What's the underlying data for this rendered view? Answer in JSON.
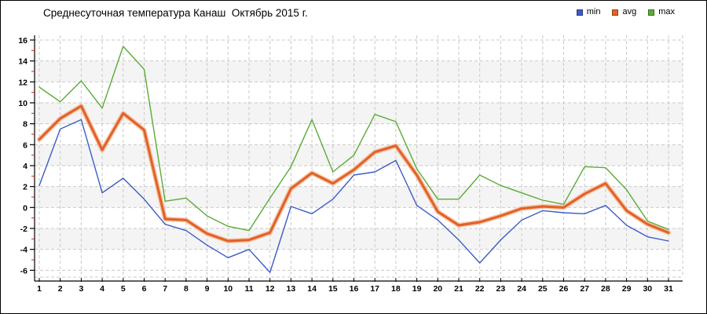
{
  "title": "Среднесуточная температура Канаш  Октябрь 2015 г.",
  "legend": {
    "items": [
      "min",
      "avg",
      "max"
    ]
  },
  "chart_data": {
    "type": "line",
    "title": "Среднесуточная температура Канаш  Октябрь 2015 г.",
    "x": [
      1,
      2,
      3,
      4,
      5,
      6,
      7,
      8,
      9,
      10,
      11,
      12,
      13,
      14,
      15,
      16,
      17,
      18,
      19,
      20,
      21,
      22,
      23,
      24,
      25,
      26,
      27,
      28,
      29,
      30,
      31
    ],
    "series": [
      {
        "name": "min",
        "color": "#3d5cc6",
        "halo": null,
        "width": 1.4,
        "values": [
          2.1,
          7.5,
          8.4,
          1.4,
          2.8,
          0.8,
          -1.6,
          -2.2,
          -3.6,
          -4.8,
          -4.0,
          -6.2,
          0.1,
          -0.6,
          0.8,
          3.1,
          3.4,
          4.5,
          0.2,
          -1.2,
          -3.1,
          -5.3,
          -3.1,
          -1.2,
          -0.3,
          -0.5,
          -0.6,
          0.2,
          -1.7,
          -2.8,
          -3.2
        ]
      },
      {
        "name": "avg",
        "color": "#e2622b",
        "halo": "#f6b88e",
        "width": 3.2,
        "values": [
          6.5,
          8.5,
          9.7,
          5.5,
          9.0,
          7.4,
          -1.1,
          -1.2,
          -2.5,
          -3.2,
          -3.1,
          -2.4,
          1.8,
          3.3,
          2.3,
          3.6,
          5.3,
          5.9,
          3.1,
          -0.4,
          -1.7,
          -1.4,
          -0.8,
          -0.1,
          0.1,
          0.0,
          1.3,
          2.3,
          -0.3,
          -1.6,
          -2.4
        ]
      },
      {
        "name": "max",
        "color": "#5aab36",
        "halo": null,
        "width": 1.4,
        "values": [
          11.5,
          10.1,
          12.1,
          9.5,
          15.4,
          13.2,
          0.6,
          0.9,
          -0.8,
          -1.8,
          -2.2,
          0.9,
          3.9,
          8.4,
          3.4,
          5.0,
          8.9,
          8.2,
          3.7,
          0.8,
          0.8,
          3.1,
          2.1,
          1.4,
          0.7,
          0.3,
          3.9,
          3.8,
          1.7,
          -1.3,
          -2.1
        ]
      }
    ],
    "xlabel": "",
    "ylabel": "",
    "ylim": [
      -6,
      16
    ],
    "ytick_step": 2,
    "grid": true,
    "legend_position": "top-right",
    "style": {
      "grid_color": "#c9c9c9",
      "band_color": "#f4f4f4",
      "axis_color": "#000000",
      "minor_tick_color": "#cc2222",
      "tick_label_color": "#000000"
    }
  }
}
